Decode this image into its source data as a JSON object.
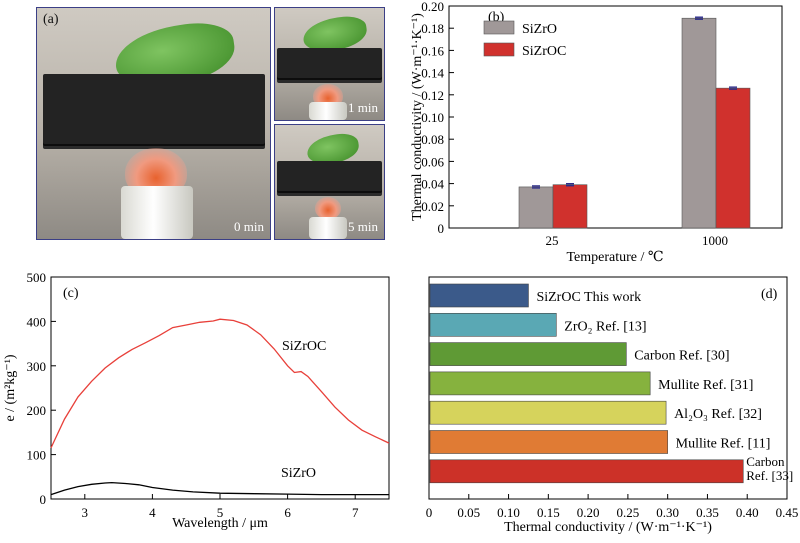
{
  "panels": {
    "a": {
      "label": "(a)",
      "photos": [
        {
          "time": "0 min"
        },
        {
          "time": "1 min"
        },
        {
          "time": "5 min"
        }
      ]
    }
  },
  "colors": {
    "siZrO_bar": "#a09898",
    "siZrOC_bar": "#d0312d",
    "siZrOC_line": "#e8403a",
    "siZrO_line": "#000000",
    "error_bar": "#2d2d8a"
  },
  "chart_data": [
    {
      "panel": "(b)",
      "type": "bar",
      "categories": [
        "25",
        "1000"
      ],
      "series": [
        {
          "name": "SiZrO",
          "values": [
            0.037,
            0.189
          ]
        },
        {
          "name": "SiZrOC",
          "values": [
            0.039,
            0.126
          ]
        }
      ],
      "xlabel": "Temperature / ℃",
      "ylabel": "Thermal conductivity / (W·m⁻¹·K⁻¹)",
      "ylim": [
        0,
        0.2
      ],
      "yticks": [
        "0",
        "0.02",
        "0.04",
        "0.06",
        "0.08",
        "0.10",
        "0.12",
        "0.14",
        "0.16",
        "0.18",
        "0.20"
      ],
      "legend": "top-left",
      "grid": false
    },
    {
      "panel": "(c)",
      "type": "line",
      "xlabel": "Wavelength / μm",
      "ylabel": "e / (m²kg⁻¹)",
      "xlim": [
        2.5,
        7.5
      ],
      "ylim": [
        0,
        500
      ],
      "xticks": [
        "3",
        "4",
        "5",
        "6",
        "7"
      ],
      "yticks": [
        "0",
        "100",
        "200",
        "300",
        "400",
        "500"
      ],
      "series": [
        {
          "name": "SiZrOC",
          "x": [
            2.5,
            2.7,
            2.9,
            3.1,
            3.3,
            3.5,
            3.7,
            3.9,
            4.1,
            4.3,
            4.5,
            4.7,
            4.9,
            5.0,
            5.2,
            5.4,
            5.6,
            5.8,
            6.0,
            6.1,
            6.2,
            6.3,
            6.5,
            6.7,
            6.9,
            7.1,
            7.3,
            7.5
          ],
          "y": [
            115,
            180,
            230,
            265,
            295,
            318,
            337,
            352,
            368,
            386,
            392,
            398,
            401,
            405,
            402,
            392,
            370,
            338,
            300,
            285,
            287,
            276,
            242,
            207,
            178,
            155,
            140,
            126
          ]
        },
        {
          "name": "SiZrO",
          "x": [
            2.5,
            2.7,
            2.9,
            3.1,
            3.3,
            3.4,
            3.6,
            3.8,
            4.0,
            4.3,
            4.6,
            5.0,
            5.5,
            6.0,
            6.5,
            7.0,
            7.5
          ],
          "y": [
            10,
            20,
            28,
            33,
            36,
            37,
            35,
            32,
            26,
            20,
            16,
            13,
            12,
            11,
            10,
            10,
            10
          ]
        }
      ],
      "grid": false
    },
    {
      "panel": "(d)",
      "type": "bar",
      "orientation": "horizontal",
      "xlabel": "Thermal conductivity / (W·m⁻¹·K⁻¹)",
      "xlim": [
        0,
        0.45
      ],
      "xticks": [
        "0",
        "0.05",
        "0.10",
        "0.15",
        "0.20",
        "0.25",
        "0.30",
        "0.35",
        "0.40",
        "0.45"
      ],
      "bars": [
        {
          "label": "SiZrOC This work",
          "value": 0.125,
          "color": "#3b5a8a",
          "label_color": "#e0302a"
        },
        {
          "label": "ZrO₂ Ref. [13]",
          "value": 0.16,
          "color": "#5aa8b4",
          "label_color": "#000000"
        },
        {
          "label": "Carbon Ref. [30]",
          "value": 0.248,
          "color": "#5f9a35",
          "label_color": "#000000"
        },
        {
          "label": "Mullite Ref. [31]",
          "value": 0.278,
          "color": "#86b23e",
          "label_color": "#000000"
        },
        {
          "label": "Al₂O₃ Ref. [32]",
          "value": 0.298,
          "color": "#d6d35c",
          "label_color": "#000000"
        },
        {
          "label": "Mullite Ref. [11]",
          "value": 0.3,
          "color": "#e07b34",
          "label_color": "#000000"
        },
        {
          "label": "Carbon Ref. [33]",
          "label_lines": [
            "Carbon",
            "Ref. [33]"
          ],
          "value": 0.395,
          "color": "#cc3128",
          "label_color": "#000000"
        }
      ],
      "grid": false
    }
  ]
}
